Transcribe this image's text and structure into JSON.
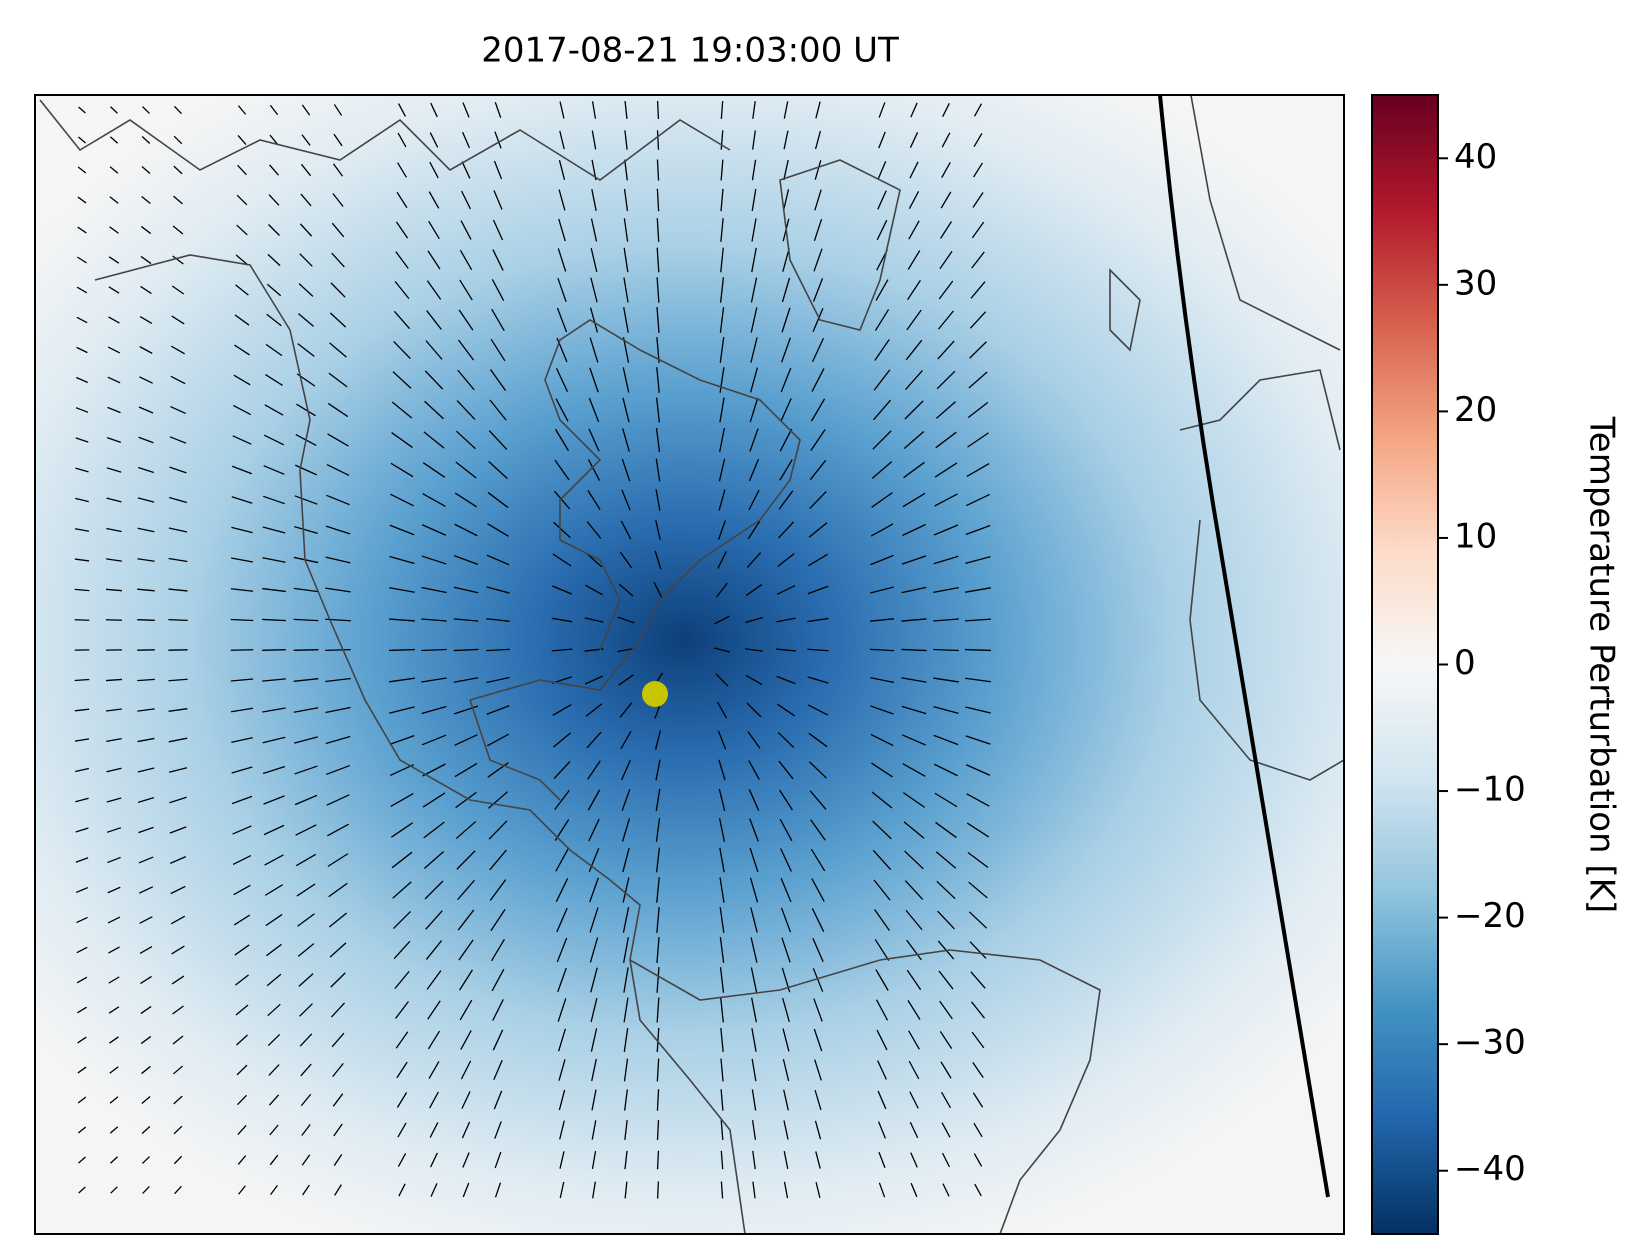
{
  "chart_data": {
    "type": "map",
    "title": "2017-08-21 19:03:00 UT",
    "colorbar": {
      "label": "Temperature Perturbation [K]",
      "lim": [
        -45,
        45
      ],
      "ticks": [
        {
          "value": -40,
          "label": "−40"
        },
        {
          "value": -30,
          "label": "−30"
        },
        {
          "value": -20,
          "label": "−20"
        },
        {
          "value": -10,
          "label": "−10"
        },
        0,
        10,
        20,
        30,
        40
      ],
      "colors": [
        "#053061",
        "#2166ac",
        "#4393c3",
        "#92c5de",
        "#d1e5f0",
        "#f7f7f7",
        "#fddbc7",
        "#f4a582",
        "#d6604d",
        "#b2182b",
        "#67001f"
      ]
    }
  }
}
